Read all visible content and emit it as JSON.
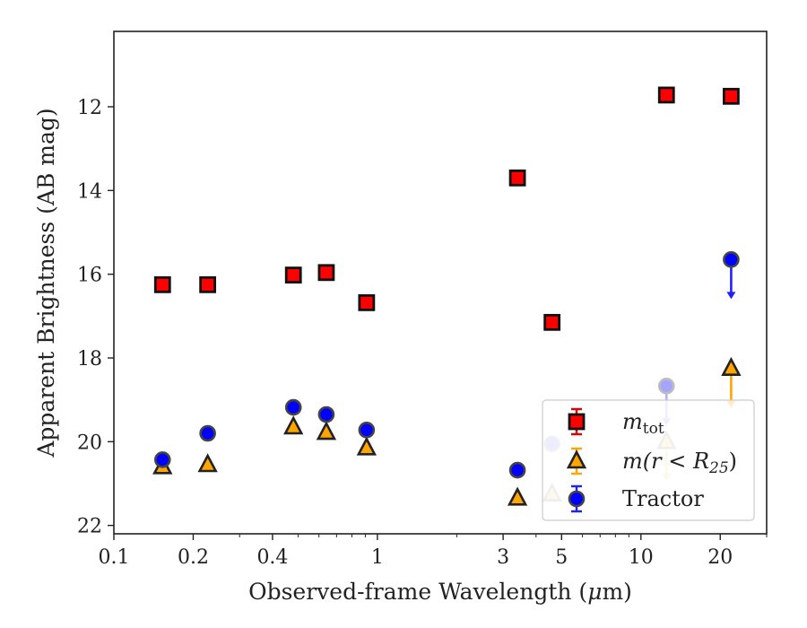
{
  "chart_data": {
    "type": "scatter",
    "x_scale": "log",
    "y_inverted": true,
    "xlabel_prefix": "Observed-frame Wavelength (",
    "xlabel_unit_symbol": "μ",
    "xlabel_suffix": "m)",
    "ylabel": "Apparent Brightness (AB mag)",
    "xlim": [
      0.1,
      30
    ],
    "ylim": [
      22.2,
      10.2
    ],
    "x_ticks": [
      {
        "value": 0.1,
        "label": "0.1"
      },
      {
        "value": 0.2,
        "label": "0.2"
      },
      {
        "value": 0.4,
        "label": "0.4"
      },
      {
        "value": 1,
        "label": "1"
      },
      {
        "value": 3,
        "label": "3"
      },
      {
        "value": 5,
        "label": "5"
      },
      {
        "value": 10,
        "label": "10"
      },
      {
        "value": 20,
        "label": "20"
      }
    ],
    "y_ticks": [
      {
        "value": 12,
        "label": "12"
      },
      {
        "value": 14,
        "label": "14"
      },
      {
        "value": 16,
        "label": "16"
      },
      {
        "value": 18,
        "label": "18"
      },
      {
        "value": 20,
        "label": "20"
      },
      {
        "value": 22,
        "label": "22"
      }
    ],
    "legend_position": "lower-right",
    "legend": [
      {
        "series": "m_tot",
        "main": "m",
        "sub": "tot",
        "tail": ""
      },
      {
        "series": "m_r25",
        "main": "m(r < R",
        "sub": "25",
        "tail": ")"
      },
      {
        "series": "tractor",
        "main": "Tractor",
        "sub": "",
        "tail": ""
      }
    ],
    "series": [
      {
        "key": "m_tot",
        "marker": "square",
        "color": "#ff0000",
        "edge": "#111111",
        "errorbar_color": "#e00000",
        "points": [
          {
            "x": 0.153,
            "y": 16.25
          },
          {
            "x": 0.227,
            "y": 16.25
          },
          {
            "x": 0.48,
            "y": 16.02
          },
          {
            "x": 0.64,
            "y": 15.96
          },
          {
            "x": 0.91,
            "y": 16.68
          },
          {
            "x": 3.4,
            "y": 13.7
          },
          {
            "x": 4.6,
            "y": 17.15
          },
          {
            "x": 12.5,
            "y": 11.72
          },
          {
            "x": 22.0,
            "y": 11.75
          }
        ]
      },
      {
        "key": "m_r25",
        "marker": "triangle",
        "color": "#ffa500",
        "edge": "#222222",
        "errorbar_color": "#ffa500",
        "points": [
          {
            "x": 0.153,
            "y": 20.6
          },
          {
            "x": 0.227,
            "y": 20.55
          },
          {
            "x": 0.48,
            "y": 19.65
          },
          {
            "x": 0.64,
            "y": 19.78
          },
          {
            "x": 0.91,
            "y": 20.15
          },
          {
            "x": 3.4,
            "y": 21.35
          },
          {
            "x": 4.6,
            "y": 21.25,
            "faded": true
          },
          {
            "x": 12.5,
            "y": 20.0,
            "upper_limit": true,
            "faded": true
          },
          {
            "x": 22.0,
            "y": 18.25,
            "upper_limit": true
          }
        ]
      },
      {
        "key": "tractor",
        "marker": "circle",
        "color": "#0000ff",
        "edge": "#444444",
        "errorbar_color": "#2020ff",
        "points": [
          {
            "x": 0.153,
            "y": 20.43
          },
          {
            "x": 0.227,
            "y": 19.8
          },
          {
            "x": 0.48,
            "y": 19.18
          },
          {
            "x": 0.64,
            "y": 19.35
          },
          {
            "x": 0.91,
            "y": 19.72
          },
          {
            "x": 3.4,
            "y": 20.68
          },
          {
            "x": 4.6,
            "y": 20.05,
            "faded": true
          },
          {
            "x": 12.5,
            "y": 18.67,
            "upper_limit": true,
            "faded": true
          },
          {
            "x": 22.0,
            "y": 15.65,
            "upper_limit": true
          }
        ]
      }
    ]
  }
}
